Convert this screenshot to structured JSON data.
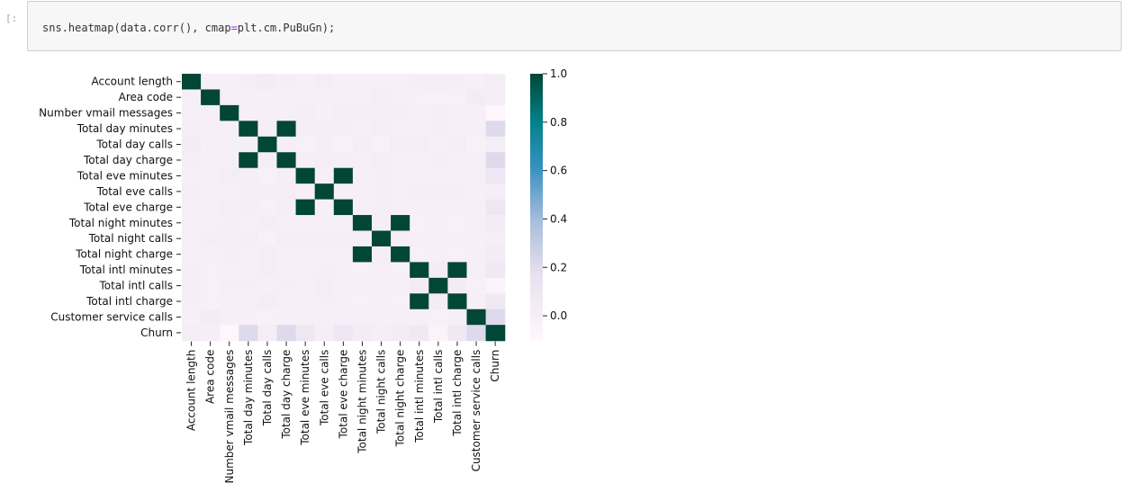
{
  "cell": {
    "prompt": "[:",
    "code": {
      "fn": "sns.heatmap",
      "open": "(",
      "arg1": "data.corr()",
      "comma": ", ",
      "kw": "cmap",
      "eq": "=",
      "val": "plt.cm.PuBuGn",
      "close": ");"
    }
  },
  "colors": {
    "cmap_low": "#fff7fb",
    "cmap_mid1": "#e7e0ef",
    "cmap_mid2": "#a6bddb",
    "cmap_mid3": "#3690c0",
    "cmap_mid4": "#02818a",
    "cmap_high": "#014636"
  },
  "chart_data": {
    "type": "heatmap",
    "title": "",
    "labels": [
      "Account length",
      "Area code",
      "Number vmail messages",
      "Total day minutes",
      "Total day calls",
      "Total day charge",
      "Total eve minutes",
      "Total eve calls",
      "Total eve charge",
      "Total night minutes",
      "Total night calls",
      "Total night charge",
      "Total intl minutes",
      "Total intl calls",
      "Total intl charge",
      "Customer service calls",
      "Churn"
    ],
    "vmin": -0.1,
    "vmax": 1.0,
    "colorbar_ticks": [
      "0.0",
      "0.2",
      "0.4",
      "0.6",
      "0.8",
      "1.0"
    ],
    "matrix": [
      [
        1.0,
        -0.01,
        0.0,
        0.01,
        0.04,
        0.01,
        -0.01,
        0.02,
        -0.01,
        -0.01,
        -0.01,
        -0.01,
        0.01,
        0.02,
        0.01,
        -0.0,
        0.02
      ],
      [
        -0.01,
        1.0,
        -0.0,
        -0.01,
        -0.01,
        -0.01,
        0.0,
        -0.01,
        0.0,
        -0.01,
        0.02,
        -0.01,
        -0.02,
        -0.02,
        -0.02,
        0.03,
        0.01
      ],
      [
        0.0,
        -0.0,
        1.0,
        0.0,
        -0.01,
        0.0,
        0.02,
        -0.01,
        0.02,
        0.01,
        0.01,
        0.01,
        0.0,
        0.01,
        0.0,
        -0.01,
        -0.09
      ],
      [
        0.01,
        -0.01,
        0.0,
        1.0,
        0.01,
        1.0,
        0.01,
        0.02,
        0.01,
        0.0,
        0.02,
        0.0,
        -0.01,
        0.01,
        -0.01,
        -0.01,
        0.21
      ],
      [
        0.04,
        -0.01,
        -0.01,
        0.01,
        1.0,
        0.01,
        -0.02,
        0.01,
        -0.02,
        0.02,
        -0.02,
        0.02,
        0.02,
        0.0,
        0.02,
        -0.02,
        0.02
      ],
      [
        0.01,
        -0.01,
        0.0,
        1.0,
        0.01,
        1.0,
        0.01,
        0.02,
        0.01,
        0.0,
        0.02,
        0.0,
        -0.01,
        0.01,
        -0.01,
        -0.01,
        0.21
      ],
      [
        -0.01,
        0.0,
        0.02,
        0.01,
        -0.02,
        0.01,
        1.0,
        -0.01,
        1.0,
        -0.01,
        0.01,
        -0.01,
        -0.01,
        0.0,
        -0.01,
        -0.01,
        0.09
      ],
      [
        0.02,
        -0.01,
        -0.01,
        0.02,
        0.01,
        0.02,
        -0.01,
        1.0,
        -0.01,
        -0.0,
        0.01,
        -0.0,
        0.01,
        0.02,
        0.01,
        0.0,
        0.01
      ],
      [
        -0.01,
        0.0,
        0.02,
        0.01,
        -0.02,
        0.01,
        1.0,
        -0.01,
        1.0,
        -0.01,
        0.01,
        -0.01,
        -0.01,
        0.0,
        -0.01,
        -0.01,
        0.09
      ],
      [
        -0.01,
        -0.01,
        0.01,
        0.0,
        0.02,
        0.0,
        -0.01,
        -0.0,
        -0.01,
        1.0,
        0.01,
        1.0,
        -0.02,
        -0.01,
        -0.02,
        -0.01,
        0.04
      ],
      [
        -0.01,
        0.02,
        0.01,
        0.02,
        -0.02,
        0.02,
        0.01,
        0.01,
        0.01,
        0.01,
        1.0,
        0.01,
        -0.01,
        0.0,
        -0.01,
        -0.01,
        0.01
      ],
      [
        -0.01,
        -0.01,
        0.01,
        0.0,
        0.02,
        0.0,
        -0.01,
        -0.0,
        -0.01,
        1.0,
        0.01,
        1.0,
        -0.02,
        -0.01,
        -0.02,
        -0.01,
        0.04
      ],
      [
        0.01,
        -0.02,
        0.0,
        -0.01,
        0.02,
        -0.01,
        -0.01,
        0.01,
        -0.01,
        -0.02,
        -0.01,
        -0.02,
        1.0,
        0.03,
        1.0,
        -0.01,
        0.07
      ],
      [
        0.02,
        -0.02,
        0.01,
        0.01,
        0.0,
        0.01,
        0.0,
        0.02,
        0.0,
        -0.01,
        0.0,
        -0.01,
        0.03,
        1.0,
        0.03,
        -0.02,
        -0.05
      ],
      [
        0.01,
        -0.02,
        0.0,
        -0.01,
        0.02,
        -0.01,
        -0.01,
        0.01,
        -0.01,
        -0.02,
        -0.01,
        -0.02,
        1.0,
        0.03,
        1.0,
        -0.01,
        0.07
      ],
      [
        -0.0,
        0.03,
        -0.01,
        -0.01,
        -0.02,
        -0.01,
        -0.01,
        0.0,
        -0.01,
        -0.01,
        -0.01,
        -0.01,
        -0.01,
        -0.02,
        -0.01,
        1.0,
        0.21
      ],
      [
        0.02,
        0.01,
        -0.09,
        0.21,
        0.02,
        0.21,
        0.09,
        0.01,
        0.09,
        0.04,
        0.01,
        0.04,
        0.07,
        -0.05,
        0.07,
        0.21,
        1.0
      ]
    ]
  }
}
